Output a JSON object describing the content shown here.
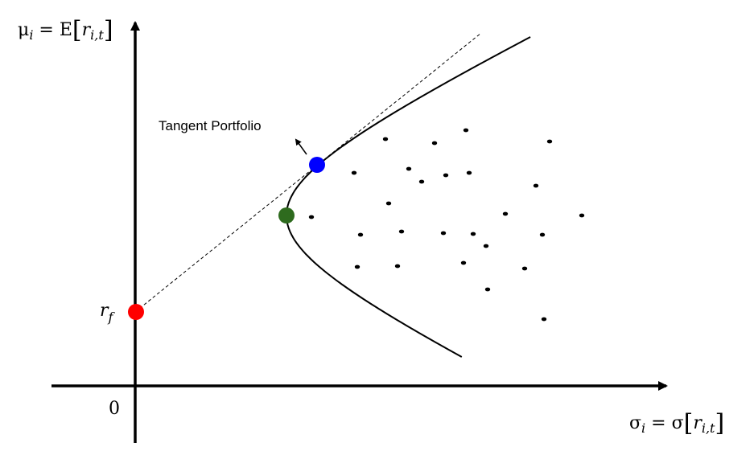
{
  "axes": {
    "y_label": {
      "main": "μ",
      "sub": "i",
      "eq": " = E",
      "open": "[",
      "r": "r",
      "rsub": "i,t",
      "close": "]"
    },
    "x_label": {
      "main": "σ",
      "sub": "i",
      "eq": " = σ",
      "open": "[",
      "r": "r",
      "rsub": "i,t",
      "close": "]"
    },
    "origin_label": "0",
    "rf_label": {
      "r": "r",
      "sub": "f"
    }
  },
  "annotation": {
    "text": "Tangent Portfolio"
  },
  "colors": {
    "risk_free_point": "#ff0000",
    "tangent_point": "#0000ff",
    "min_variance_point": "#2e6b1e",
    "asset_points": "#000000",
    "lines": "#000000"
  },
  "icons": [
    "arrow-up-left-icon"
  ]
}
